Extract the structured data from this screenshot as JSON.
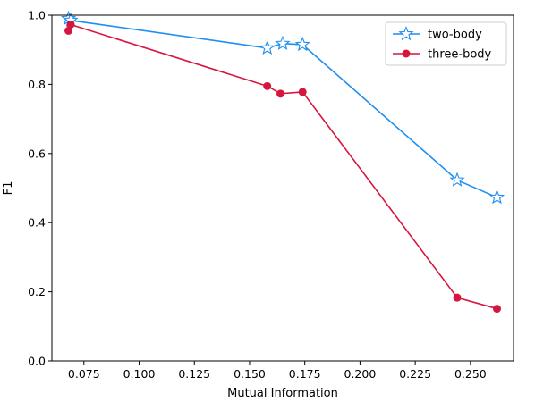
{
  "chart_data": {
    "type": "line",
    "xlabel": "Mutual Information",
    "ylabel": "F1",
    "xlim": [
      0.0605,
      0.2695
    ],
    "ylim": [
      0.0,
      1.0
    ],
    "xticks": [
      0.075,
      0.1,
      0.125,
      0.15,
      0.175,
      0.2,
      0.225,
      0.25
    ],
    "xtick_labels": [
      "0.075",
      "0.100",
      "0.125",
      "0.150",
      "0.175",
      "0.200",
      "0.225",
      "0.250"
    ],
    "yticks": [
      0.0,
      0.2,
      0.4,
      0.6,
      0.8,
      1.0
    ],
    "ytick_labels": [
      "0.0",
      "0.2",
      "0.4",
      "0.6",
      "0.8",
      "1.0"
    ],
    "grid": false,
    "legend_position": "top-right",
    "series": [
      {
        "name": "two-body",
        "color": "#1f8ef1",
        "marker": "star-open",
        "x": [
          0.068,
          0.069,
          0.158,
          0.165,
          0.174,
          0.244,
          0.262
        ],
        "y": [
          0.99,
          0.985,
          0.905,
          0.918,
          0.915,
          0.523,
          0.473
        ]
      },
      {
        "name": "three-body",
        "color": "#d6163f",
        "marker": "circle",
        "x": [
          0.068,
          0.069,
          0.158,
          0.164,
          0.174,
          0.244,
          0.262
        ],
        "y": [
          0.955,
          0.973,
          0.795,
          0.773,
          0.778,
          0.183,
          0.151
        ]
      }
    ]
  }
}
